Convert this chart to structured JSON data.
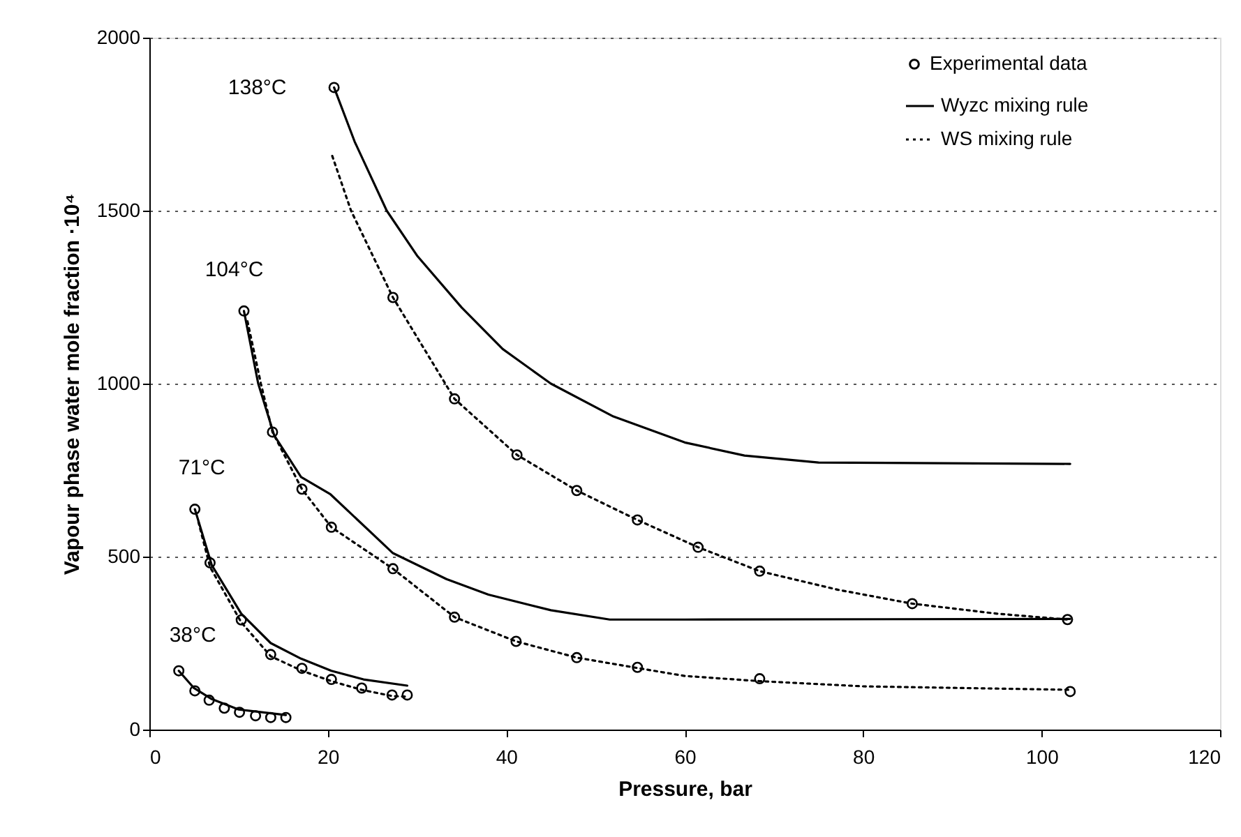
{
  "chart_data": {
    "type": "line",
    "xlabel": "Pressure, bar",
    "ylabel": "Vapour phase water mole fraction ·10⁴",
    "xlim": [
      0,
      120
    ],
    "ylim": [
      0,
      2000
    ],
    "xticks": [
      0,
      20,
      40,
      60,
      80,
      100,
      120
    ],
    "yticks": [
      0,
      500,
      1000,
      1500,
      2000
    ],
    "grid": "y",
    "legend": "top right",
    "series": [
      {
        "name": "Experimental data",
        "type": "scatter",
        "marker": "circle",
        "color": "#000000",
        "x": [
          3.3,
          5.1,
          6.7,
          8.4,
          10.1,
          11.9,
          13.6,
          15.3,
          5.1,
          6.8,
          10.3,
          13.6,
          17.1,
          20.4,
          23.8,
          27.2,
          28.9,
          10.6,
          13.8,
          17.1,
          20.4,
          27.3,
          34.2,
          41.1,
          47.9,
          54.7,
          68.4,
          103.2,
          20.7,
          27.3,
          34.2,
          41.2,
          47.9,
          54.7,
          61.5,
          68.4,
          85.5,
          102.9
        ],
        "values": [
          170,
          112,
          85,
          62,
          50,
          40,
          35,
          35,
          637,
          482,
          317,
          217,
          177,
          145,
          120,
          100,
          100,
          1210,
          860,
          695,
          585,
          465,
          325,
          255,
          208,
          180,
          147,
          110,
          1856,
          1249,
          956,
          794,
          691,
          606,
          527,
          458,
          364,
          318
        ]
      },
      {
        "name": "Wyzc mixing rule",
        "type": "line",
        "line_style": "solid",
        "color": "#000000",
        "x": [
          3.3,
          5,
          7,
          10,
          15.3,
          null,
          5.1,
          7,
          10.3,
          13.6,
          17,
          20.4,
          24,
          28.9,
          null,
          10.6,
          12.2,
          14,
          17,
          20.3,
          27.3,
          33.3,
          38,
          45,
          51.6,
          60,
          103.2,
          null,
          20.7,
          23,
          26.6,
          30,
          35,
          39.6,
          45,
          52,
          60,
          66.7,
          75,
          103.2
        ],
        "values": [
          170,
          120,
          88,
          58,
          42,
          null,
          637,
          475,
          335,
          250,
          205,
          170,
          145,
          127,
          null,
          1210,
          1000,
          850,
          730,
          680,
          510,
          435,
          390,
          345,
          318,
          318,
          320,
          null,
          1856,
          1700,
          1500,
          1370,
          1220,
          1100,
          1000,
          905,
          830,
          792,
          772,
          768
        ]
      },
      {
        "name": "WS mixing rule",
        "type": "line",
        "line_style": "dotted",
        "color": "#000000",
        "x": [
          5.5,
          6.8,
          10.3,
          13.6,
          17.1,
          20.4,
          23.8,
          27.2,
          28.9,
          null,
          11,
          12.5,
          13.8,
          17.1,
          20.4,
          27.3,
          34.2,
          41.1,
          47.9,
          54.7,
          60,
          68.4,
          80,
          103.2,
          null,
          20.5,
          22.6,
          27.3,
          34.2,
          41.2,
          47.9,
          54.7,
          61.5,
          68.4,
          77.2,
          85.5,
          95,
          102.9
        ],
        "values": [
          600,
          470,
          310,
          212,
          170,
          140,
          115,
          97,
          95,
          null,
          1180,
          1000,
          860,
          695,
          585,
          465,
          325,
          255,
          208,
          178,
          155,
          140,
          125,
          115,
          null,
          1658,
          1500,
          1249,
          956,
          794,
          691,
          606,
          527,
          458,
          404,
          364,
          335,
          318
        ]
      }
    ],
    "annotations": [
      "38°C",
      "71°C",
      "104°C",
      "138°C"
    ]
  }
}
